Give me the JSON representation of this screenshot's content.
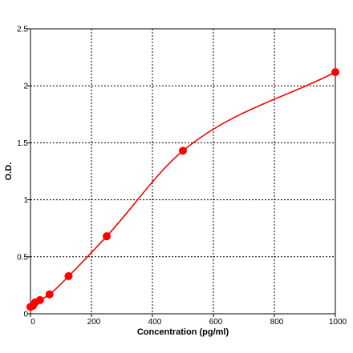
{
  "chart_data": {
    "type": "scatter",
    "xlabel": "Concentration (pg/ml)",
    "ylabel": "O.D.",
    "xlim": [
      0,
      1000
    ],
    "ylim": [
      0,
      2.5
    ],
    "xticks": [
      0,
      200,
      400,
      600,
      800,
      1000
    ],
    "yticks": [
      0,
      0.5,
      1,
      1.5,
      2,
      2.5
    ],
    "xtick_labels": [
      "0",
      "200",
      "400",
      "600",
      "800",
      "1000"
    ],
    "ytick_labels": [
      "0",
      "0.5",
      "1",
      "1.5",
      "2",
      "2.5"
    ],
    "grid": true,
    "series": [
      {
        "x": [
          0,
          7.8,
          15.6,
          31.2,
          62.5,
          125,
          250,
          500,
          1000
        ],
        "y": [
          0.06,
          0.07,
          0.1,
          0.12,
          0.17,
          0.33,
          0.68,
          1.43,
          2.12
        ],
        "color": "#ff0000",
        "fit": "smooth curve"
      }
    ]
  }
}
